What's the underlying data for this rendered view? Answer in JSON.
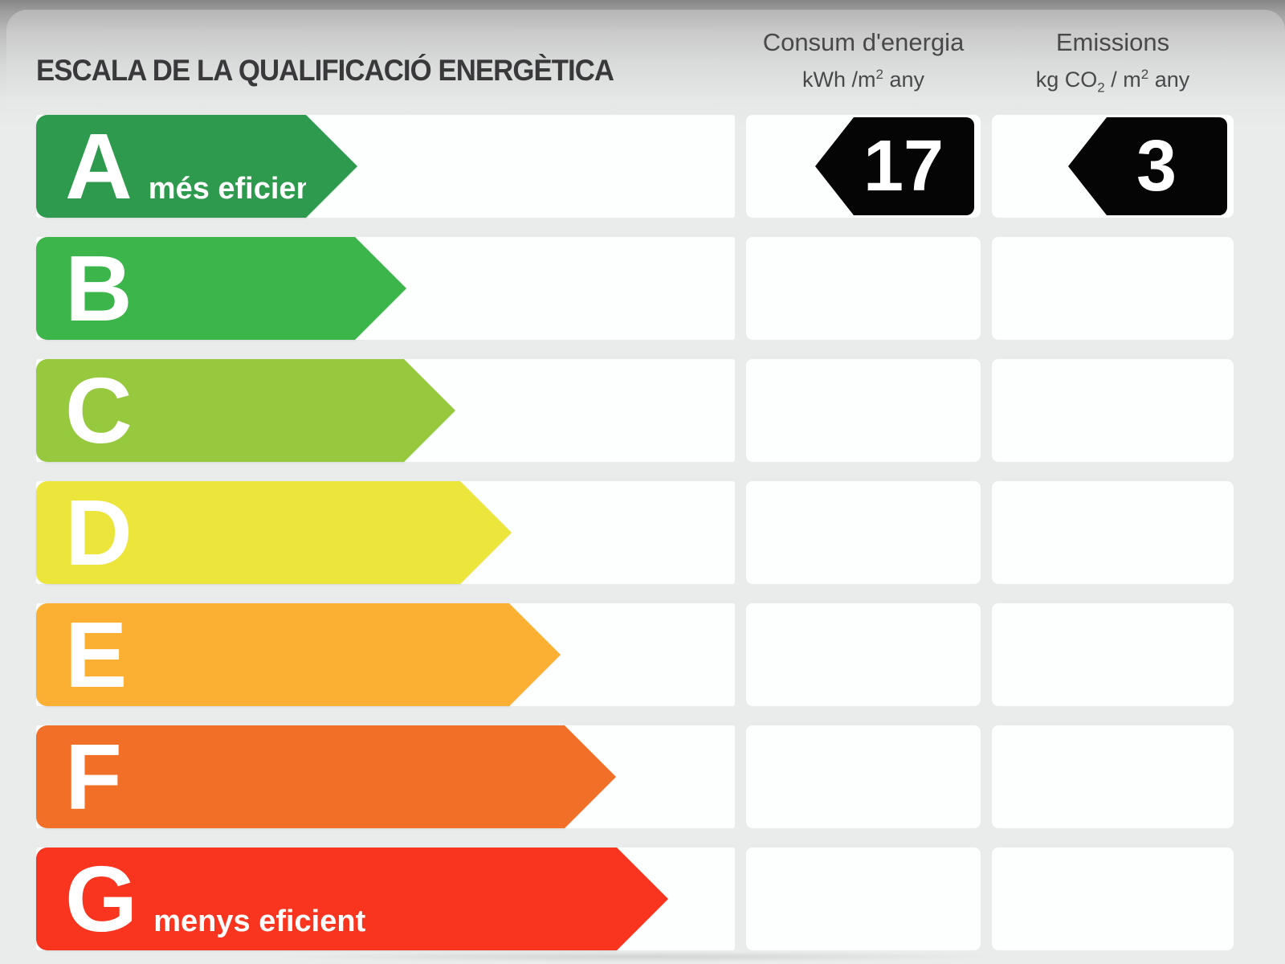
{
  "title": "ESCALA DE LA QUALIFICACIÓ ENERGÈTICA",
  "columns": {
    "consumption": {
      "line1": "Consum d'energia",
      "unit_main": "kWh /m",
      "unit_sup": "2",
      "unit_tail": " any"
    },
    "emissions": {
      "line1": "Emissions",
      "unit_a": "kg CO",
      "unit_a_sub": "2",
      "unit_b": " / m",
      "unit_b_sup": "2",
      "unit_tail": " any"
    }
  },
  "rows": [
    {
      "letter": "A",
      "label": "més eficient",
      "color": "#2d9a4d",
      "width_pct": 46,
      "consumption": "17",
      "emissions": "3"
    },
    {
      "letter": "B",
      "label": "",
      "color": "#3cb54a",
      "width_pct": 53,
      "consumption": null,
      "emissions": null
    },
    {
      "letter": "C",
      "label": "",
      "color": "#96c93d",
      "width_pct": 60,
      "consumption": null,
      "emissions": null
    },
    {
      "letter": "D",
      "label": "",
      "color": "#ece63c",
      "width_pct": 68,
      "consumption": null,
      "emissions": null
    },
    {
      "letter": "E",
      "label": "",
      "color": "#fbb033",
      "width_pct": 75,
      "consumption": null,
      "emissions": null
    },
    {
      "letter": "F",
      "label": "",
      "color": "#f16f26",
      "width_pct": 83,
      "consumption": null,
      "emissions": null
    },
    {
      "letter": "G",
      "label": "menys eficient",
      "color": "#f9341f",
      "width_pct": 90.5,
      "consumption": null,
      "emissions": null
    }
  ],
  "chart_data": {
    "type": "bar",
    "title": "ESCALA DE LA QUALIFICACIÓ ENERGÈTICA",
    "categories": [
      "A",
      "B",
      "C",
      "D",
      "E",
      "F",
      "G"
    ],
    "series": [
      {
        "name": "relative_bar_length_pct",
        "values": [
          46,
          53,
          60,
          68,
          75,
          83,
          90.5
        ]
      }
    ],
    "bar_colors": [
      "#2d9a4d",
      "#3cb54a",
      "#96c93d",
      "#ece63c",
      "#fbb033",
      "#f16f26",
      "#f9341f"
    ],
    "annotations": {
      "best_label": "més eficient",
      "worst_label": "menys eficient",
      "rated_class": "A",
      "consum_energia_kwh_m2_any": 17,
      "emissions_kg_co2_m2_any": 3
    },
    "legend_position": "none",
    "grid": false,
    "orientation": "horizontal"
  }
}
